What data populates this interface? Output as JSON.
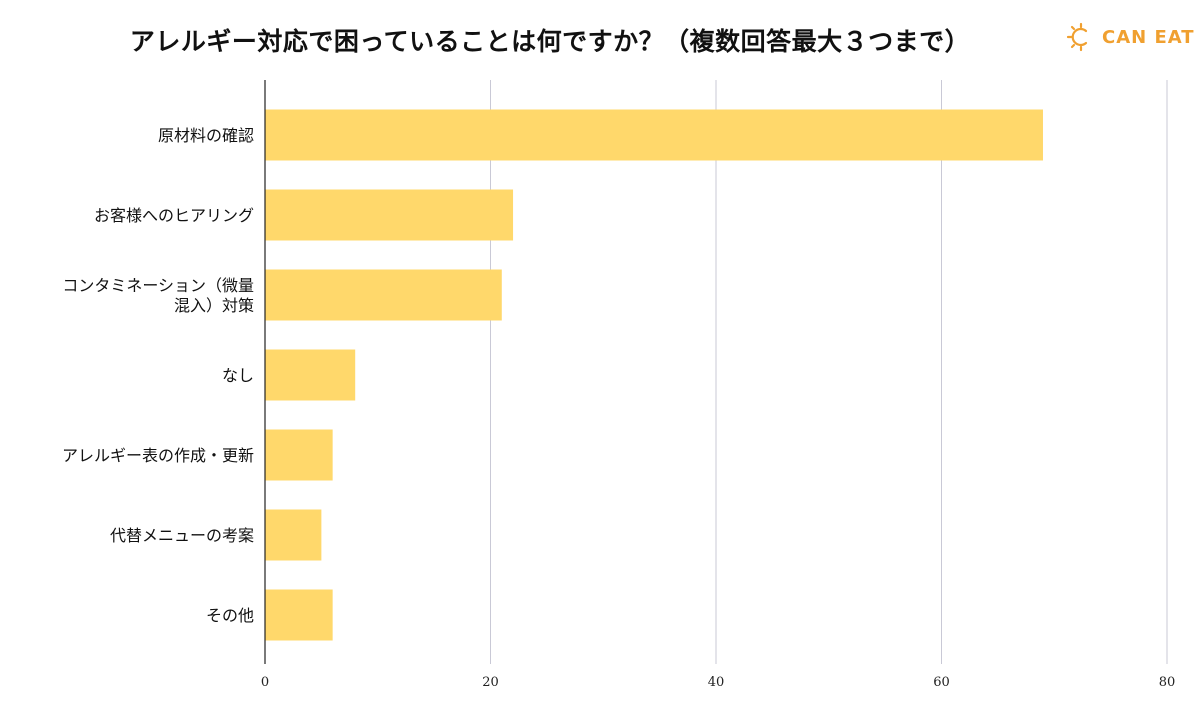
{
  "header": {
    "title": "アレルギー対応で困っていることは何ですか？（複数回答最大３つまで）",
    "brand": "CAN EAT"
  },
  "colors": {
    "bar": "#ffd86b",
    "gridline": "#c9c9d6",
    "axis": "#222222",
    "brand": "#f0a030"
  },
  "chart_data": {
    "type": "bar",
    "orientation": "horizontal",
    "title": "アレルギー対応で困っていることは何ですか？（複数回答最大３つまで）",
    "categories": [
      [
        "原材料の確認"
      ],
      [
        "お客様へのヒアリング"
      ],
      [
        "コンタミネーション（微量",
        "混入）対策"
      ],
      [
        "なし"
      ],
      [
        "アレルギー表の作成・更新"
      ],
      [
        "代替メニューの考案"
      ],
      [
        "その他"
      ]
    ],
    "values": [
      69,
      22,
      21,
      8,
      6,
      5,
      6
    ],
    "xlim": [
      0,
      80
    ],
    "xticks": [
      0,
      20,
      40,
      60,
      80
    ],
    "grid": true,
    "legend": "none"
  }
}
